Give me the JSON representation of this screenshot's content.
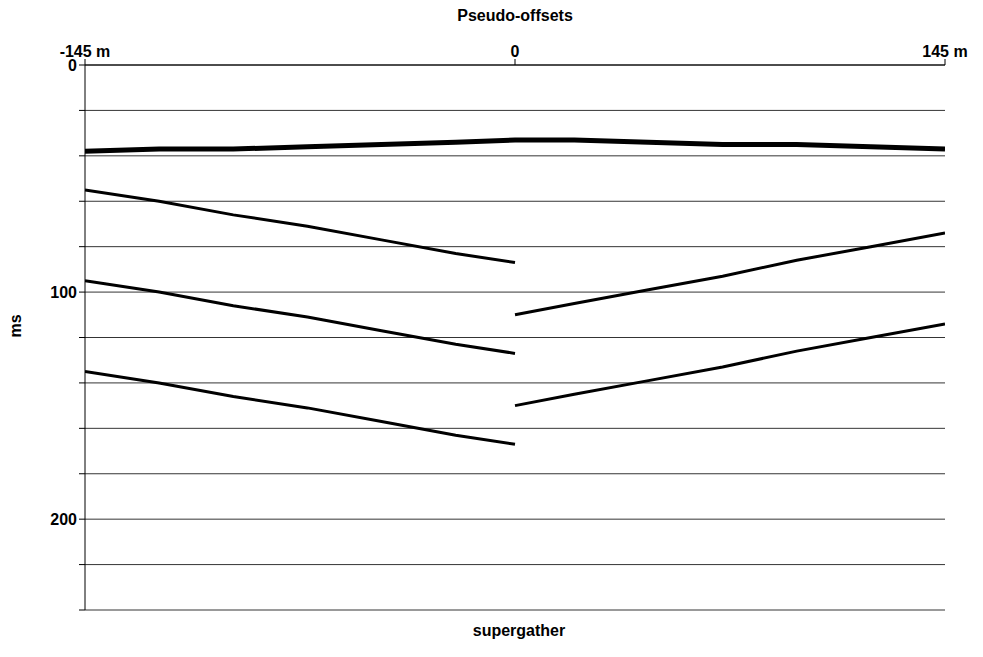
{
  "chart_data": {
    "type": "line",
    "title": "supergather",
    "x_label": "Pseudo-offsets",
    "y_label": "ms",
    "x": [
      -145,
      -120,
      -95,
      -70,
      -45,
      -20,
      0,
      20,
      45,
      70,
      95,
      120,
      145
    ],
    "series": [
      {
        "color": "#000000",
        "line_style": "solid",
        "values": [
          38,
          37,
          37,
          36,
          35,
          34,
          33,
          33,
          34,
          35,
          35,
          36,
          37
        ]
      },
      {
        "color": "#000000",
        "line_style": "solid",
        "values": [
          55,
          60,
          66,
          71,
          77,
          83,
          87,
          null,
          null,
          null,
          null,
          null,
          null
        ]
      },
      {
        "color": "#000000",
        "line_style": "solid",
        "values": [
          95,
          100,
          106,
          111,
          117,
          123,
          127,
          null,
          null,
          null,
          null,
          null,
          null
        ]
      },
      {
        "color": "#000000",
        "line_style": "solid",
        "values": [
          135,
          140,
          146,
          151,
          157,
          163,
          167,
          null,
          null,
          null,
          null,
          null,
          null
        ]
      },
      {
        "color": "#000000",
        "line_style": "solid",
        "values": [
          null,
          null,
          null,
          null,
          null,
          null,
          110,
          105,
          99,
          93,
          86,
          80,
          74
        ]
      },
      {
        "color": "#000000",
        "line_style": "solid",
        "values": [
          null,
          null,
          null,
          null,
          null,
          null,
          150,
          145,
          139,
          133,
          126,
          120,
          114
        ]
      }
    ],
    "xlim": [
      -145,
      145
    ],
    "xticks": [
      {
        "value": -145,
        "label": "-145 m"
      },
      0,
      {
        "value": 145,
        "label": "145 m"
      }
    ],
    "ylim": [
      0,
      240
    ],
    "yticks": [
      0,
      {
        "value": 20,
        "label": null
      },
      {
        "value": 40,
        "label": null
      },
      {
        "value": 60,
        "label": null
      },
      {
        "value": 80,
        "label": null
      },
      100,
      {
        "value": 120,
        "label": null
      },
      {
        "value": 140,
        "label": null
      },
      {
        "value": 160,
        "label": null
      },
      {
        "value": 180,
        "label": null
      },
      200,
      {
        "value": 220,
        "label": null
      },
      {
        "value": 240,
        "label": null
      }
    ],
    "grid": true,
    "tick_labels": true
  }
}
